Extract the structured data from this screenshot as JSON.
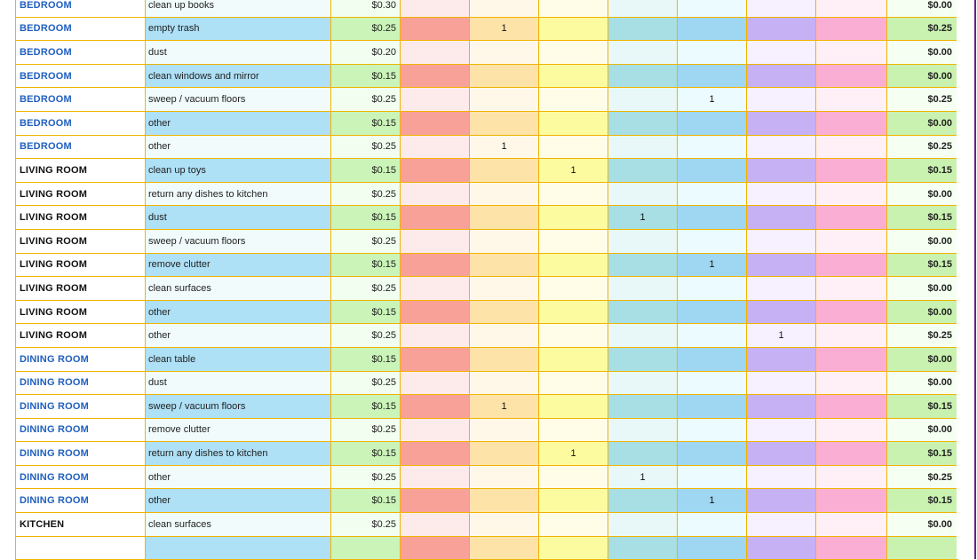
{
  "colors": {
    "room_blue": "#1f5fbf",
    "row_white": "#ffffff",
    "task_light": "#f1fbfb",
    "task_blue": "#aee0f6",
    "value_light": "#f2fff0",
    "value_green": "#caf4b8",
    "day_light": [
      "#fdeaea",
      "#fff8e9",
      "#fffde7",
      "#e8f8f8",
      "#ecfbff",
      "#f6f0ff",
      "#fff0f7"
    ],
    "day_strong": [
      "#f8a198",
      "#fde3a8",
      "#fcfb9f",
      "#a7dfe4",
      "#9fd6f2",
      "#c6b1f4",
      "#fbaed3"
    ],
    "total_light": "#f5fff2",
    "total_green": "#c9f1b0",
    "border": "#f0b400"
  },
  "rows": [
    {
      "room": "BEDROOM",
      "task": "clean up books",
      "value": "$0.30",
      "days": [
        "",
        "",
        "",
        "",
        "",
        "",
        ""
      ],
      "total": "$0.00",
      "blue": true,
      "shade": false
    },
    {
      "room": "BEDROOM",
      "task": "empty trash",
      "value": "$0.25",
      "days": [
        "",
        "1",
        "",
        "",
        "",
        "",
        ""
      ],
      "total": "$0.25",
      "blue": true,
      "shade": true
    },
    {
      "room": "BEDROOM",
      "task": "dust",
      "value": "$0.20",
      "days": [
        "",
        "",
        "",
        "",
        "",
        "",
        ""
      ],
      "total": "$0.00",
      "blue": true,
      "shade": false
    },
    {
      "room": "BEDROOM",
      "task": "clean windows and mirror",
      "value": "$0.15",
      "days": [
        "",
        "",
        "",
        "",
        "",
        "",
        ""
      ],
      "total": "$0.00",
      "blue": true,
      "shade": true
    },
    {
      "room": "BEDROOM",
      "task": "sweep / vacuum floors",
      "value": "$0.25",
      "days": [
        "",
        "",
        "",
        "",
        "1",
        "",
        ""
      ],
      "total": "$0.25",
      "blue": true,
      "shade": false
    },
    {
      "room": "BEDROOM",
      "task": "other",
      "value": "$0.15",
      "days": [
        "",
        "",
        "",
        "",
        "",
        "",
        ""
      ],
      "total": "$0.00",
      "blue": true,
      "shade": true
    },
    {
      "room": "BEDROOM",
      "task": "other",
      "value": "$0.25",
      "days": [
        "",
        "1",
        "",
        "",
        "",
        "",
        ""
      ],
      "total": "$0.25",
      "blue": true,
      "shade": false
    },
    {
      "room": "LIVING ROOM",
      "task": "clean up toys",
      "value": "$0.15",
      "days": [
        "",
        "",
        "1",
        "",
        "",
        "",
        ""
      ],
      "total": "$0.15",
      "blue": false,
      "shade": true
    },
    {
      "room": "LIVING ROOM",
      "task": "return any dishes to kitchen",
      "value": "$0.25",
      "days": [
        "",
        "",
        "",
        "",
        "",
        "",
        ""
      ],
      "total": "$0.00",
      "blue": false,
      "shade": false
    },
    {
      "room": "LIVING ROOM",
      "task": "dust",
      "value": "$0.15",
      "days": [
        "",
        "",
        "",
        "1",
        "",
        "",
        ""
      ],
      "total": "$0.15",
      "blue": false,
      "shade": true
    },
    {
      "room": "LIVING ROOM",
      "task": "sweep / vacuum floors",
      "value": "$0.25",
      "days": [
        "",
        "",
        "",
        "",
        "",
        "",
        ""
      ],
      "total": "$0.00",
      "blue": false,
      "shade": false
    },
    {
      "room": "LIVING ROOM",
      "task": "remove clutter",
      "value": "$0.15",
      "days": [
        "",
        "",
        "",
        "",
        "1",
        "",
        ""
      ],
      "total": "$0.15",
      "blue": false,
      "shade": true
    },
    {
      "room": "LIVING ROOM",
      "task": "clean surfaces",
      "value": "$0.25",
      "days": [
        "",
        "",
        "",
        "",
        "",
        "",
        ""
      ],
      "total": "$0.00",
      "blue": false,
      "shade": false
    },
    {
      "room": "LIVING ROOM",
      "task": "other",
      "value": "$0.15",
      "days": [
        "",
        "",
        "",
        "",
        "",
        "",
        ""
      ],
      "total": "$0.00",
      "blue": false,
      "shade": true
    },
    {
      "room": "LIVING ROOM",
      "task": "other",
      "value": "$0.25",
      "days": [
        "",
        "",
        "",
        "",
        "",
        "1",
        ""
      ],
      "total": "$0.25",
      "blue": false,
      "shade": false
    },
    {
      "room": "DINING ROOM",
      "task": "clean table",
      "value": "$0.15",
      "days": [
        "",
        "",
        "",
        "",
        "",
        "",
        ""
      ],
      "total": "$0.00",
      "blue": true,
      "shade": true
    },
    {
      "room": "DINING ROOM",
      "task": "dust",
      "value": "$0.25",
      "days": [
        "",
        "",
        "",
        "",
        "",
        "",
        ""
      ],
      "total": "$0.00",
      "blue": true,
      "shade": false
    },
    {
      "room": "DINING ROOM",
      "task": "sweep / vacuum floors",
      "value": "$0.15",
      "days": [
        "",
        "1",
        "",
        "",
        "",
        "",
        ""
      ],
      "total": "$0.15",
      "blue": true,
      "shade": true
    },
    {
      "room": "DINING ROOM",
      "task": "remove clutter",
      "value": "$0.25",
      "days": [
        "",
        "",
        "",
        "",
        "",
        "",
        ""
      ],
      "total": "$0.00",
      "blue": true,
      "shade": false
    },
    {
      "room": "DINING ROOM",
      "task": "return any dishes to kitchen",
      "value": "$0.15",
      "days": [
        "",
        "",
        "1",
        "",
        "",
        "",
        ""
      ],
      "total": "$0.15",
      "blue": true,
      "shade": true
    },
    {
      "room": "DINING ROOM",
      "task": "other",
      "value": "$0.25",
      "days": [
        "",
        "",
        "",
        "1",
        "",
        "",
        ""
      ],
      "total": "$0.25",
      "blue": true,
      "shade": false
    },
    {
      "room": "DINING ROOM",
      "task": "other",
      "value": "$0.15",
      "days": [
        "",
        "",
        "",
        "",
        "1",
        "",
        ""
      ],
      "total": "$0.15",
      "blue": true,
      "shade": true
    },
    {
      "room": "KITCHEN",
      "task": "clean surfaces",
      "value": "$0.25",
      "days": [
        "",
        "",
        "",
        "",
        "",
        "",
        ""
      ],
      "total": "$0.00",
      "blue": false,
      "shade": false
    },
    {
      "room": "",
      "task": "",
      "value": "",
      "days": [
        "",
        "",
        "",
        "",
        "",
        "",
        ""
      ],
      "total": "",
      "blue": false,
      "shade": true
    }
  ]
}
